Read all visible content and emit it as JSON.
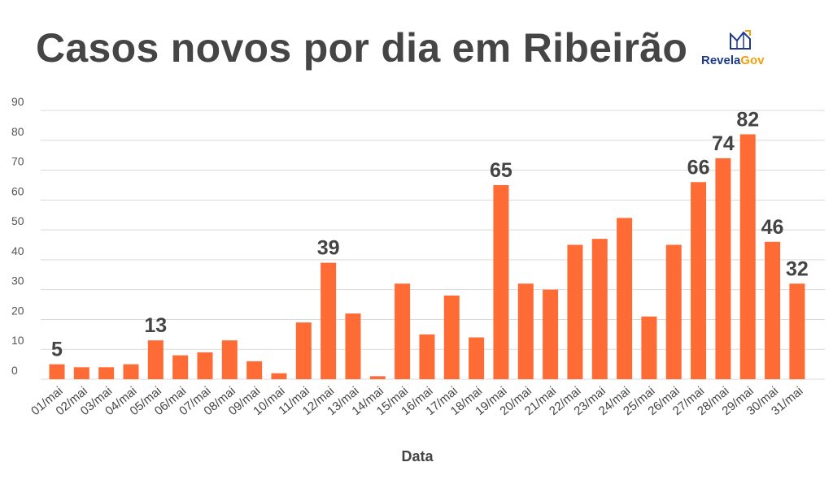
{
  "chart_data": {
    "type": "bar",
    "title": "Casos novos por dia em Ribeirão",
    "xlabel": "Data",
    "ylabel": "",
    "ylim": [
      0,
      90
    ],
    "yticks": [
      "0",
      "10",
      "20",
      "30",
      "40",
      "50",
      "60",
      "70",
      "80",
      "90"
    ],
    "grid": true,
    "bar_color": "#ff6b35",
    "categories": [
      "01/mai",
      "02/mai",
      "03/mai",
      "04/mai",
      "05/mai",
      "06/mai",
      "07/mai",
      "08/mai",
      "09/mai",
      "10/mai",
      "11/mai",
      "12/mai",
      "13/mai",
      "14/mai",
      "15/mai",
      "16/mai",
      "17/mai",
      "18/mai",
      "19/mai",
      "20/mai",
      "21/mai",
      "22/mai",
      "23/mai",
      "24/mai",
      "25/mai",
      "26/mai",
      "27/mai",
      "28/mai",
      "29/mai",
      "30/mai",
      "31/mai"
    ],
    "values": [
      5,
      4,
      4,
      5,
      13,
      8,
      9,
      13,
      6,
      2,
      19,
      39,
      22,
      1,
      32,
      15,
      28,
      14,
      65,
      32,
      30,
      45,
      47,
      54,
      21,
      45,
      66,
      74,
      82,
      46,
      32
    ],
    "data_labels": [
      {
        "category": "01/mai",
        "text": "5"
      },
      {
        "category": "05/mai",
        "text": "13"
      },
      {
        "category": "12/mai",
        "text": "39"
      },
      {
        "category": "19/mai",
        "text": "65"
      },
      {
        "category": "27/mai",
        "text": "66"
      },
      {
        "category": "28/mai",
        "text": "74"
      },
      {
        "category": "29/mai",
        "text": "82"
      },
      {
        "category": "30/mai",
        "text": "46"
      },
      {
        "category": "31/mai",
        "text": "32"
      }
    ]
  },
  "logo": {
    "text_part1": "Revela",
    "text_part2": "Gov",
    "colors": {
      "primary": "#1e3a8a",
      "accent": "#f59e0b"
    }
  }
}
